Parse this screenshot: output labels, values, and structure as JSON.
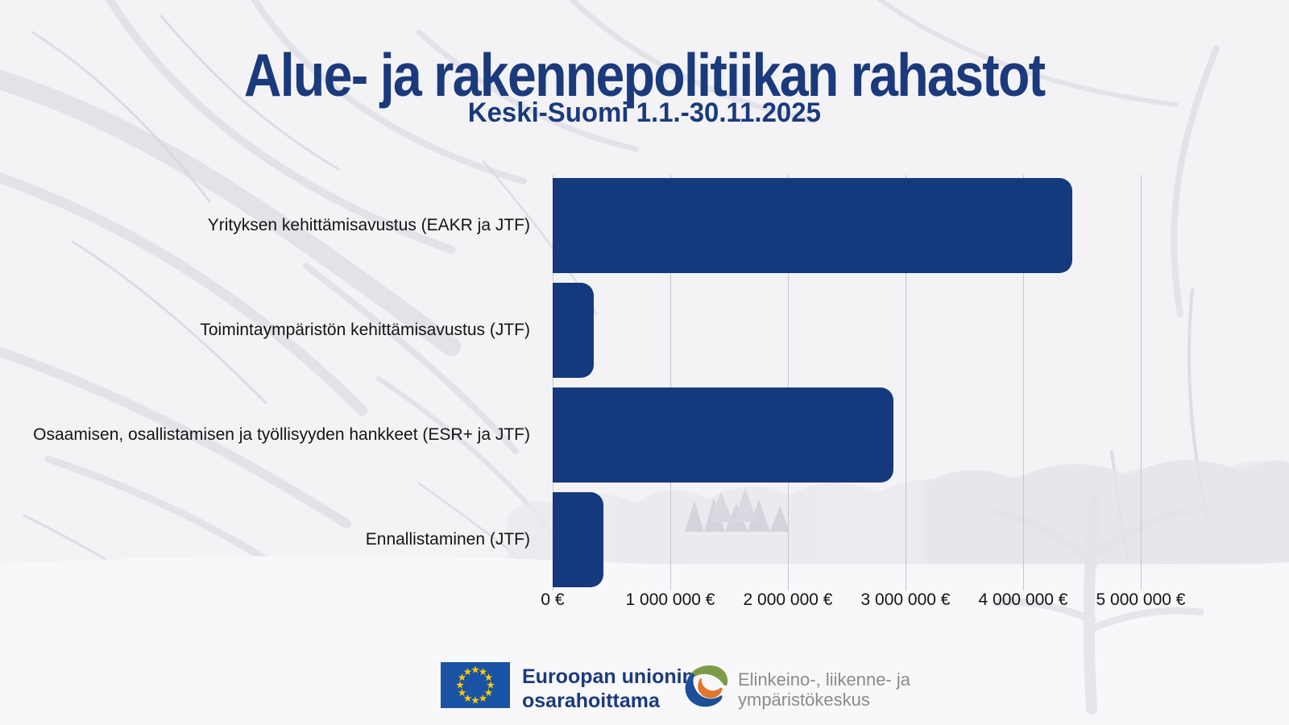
{
  "title": "Alue- ja rakennepolitiikan rahastot",
  "subtitle": "Keski-Suomi 1.1.-30.11.2025",
  "chart_data": {
    "type": "bar",
    "orientation": "horizontal",
    "title": "Alue- ja rakennepolitiikan rahastot",
    "subtitle": "Keski-Suomi 1.1.-30.11.2025",
    "categories": [
      "Yrityksen kehittämisavustus (EAKR ja JTF)",
      "Toimintaympäristön kehittämisavustus (JTF)",
      "Osaamisen, osallistamisen ja työllisyyden hankkeet (ESR+ ja JTF)",
      "Ennallistaminen (JTF)"
    ],
    "values": [
      4420000,
      350000,
      2900000,
      430000
    ],
    "xlim": [
      0,
      5000000
    ],
    "x_tick_values": [
      0,
      1000000,
      2000000,
      3000000,
      4000000,
      5000000
    ],
    "x_tick_labels": [
      "0 €",
      "1 000 000 €",
      "2 000 000 €",
      "3 000 000 €",
      "4 000 000 €",
      "5 000 000 €"
    ],
    "xlabel": "",
    "ylabel": "",
    "grid": true,
    "legend": false,
    "bar_color": "#14397d"
  },
  "footer": {
    "eu": {
      "line1": "Euroopan unionin",
      "line2": "osarahoittama"
    },
    "ely": {
      "line1": "Elinkeino-, liikenne- ja",
      "line2": "ympäristökeskus"
    }
  },
  "colors": {
    "title_navy": "#1b3a7c",
    "bar_navy": "#14397d",
    "gridline_gray": "#c6c6ce",
    "label_black": "#141414",
    "eu_flag_blue": "#1a52a4",
    "eu_star_yellow": "#ffcc00",
    "ely_green": "#7d9c49",
    "ely_blue": "#1c4f97",
    "ely_orange": "#e2762b",
    "ely_text_gray": "#8b8b8b",
    "background": "#f4f4f7"
  }
}
